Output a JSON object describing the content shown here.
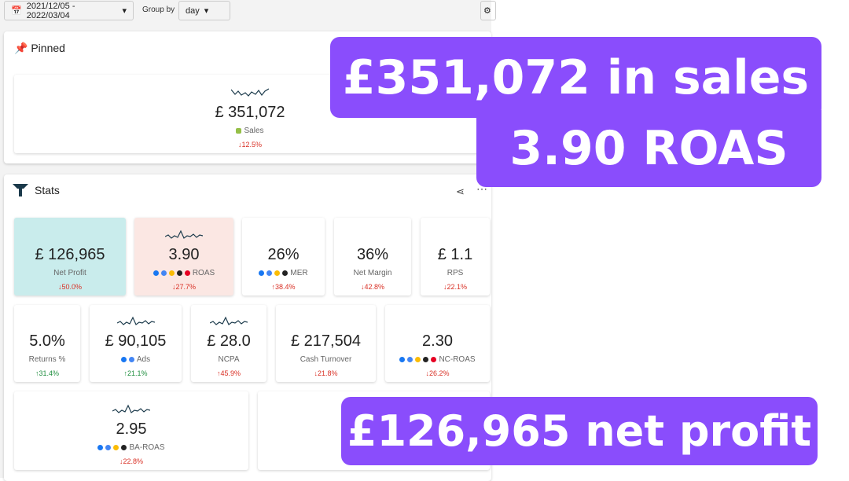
{
  "toolbar": {
    "date_range": "2021/12/05 - 2022/03/04",
    "group_by_label": "Group by",
    "group_by": "day"
  },
  "pinned": {
    "title": "Pinned",
    "card": {
      "value": "£ 351,072",
      "label": "Sales",
      "change": "↓12.5%",
      "change_color": "#d93025"
    }
  },
  "stats": {
    "title": "Stats",
    "cards": [
      {
        "value": "£ 126,965",
        "label": "Net Profit",
        "change": "↓50.0%",
        "change_color": "#d93025",
        "background": "#c9ecec"
      },
      {
        "value": "3.90",
        "label": "ROAS",
        "change": "↓27.7%",
        "change_color": "#d93025",
        "background": "#fbe7e3"
      },
      {
        "value": "26%",
        "label": "MER",
        "change": "↑38.4%",
        "change_color": "#d93025",
        "background": "#ffffff"
      },
      {
        "value": "36%",
        "label": "Net Margin",
        "change": "↓42.8%",
        "change_color": "#d93025",
        "background": "#ffffff"
      },
      {
        "value": "£ 1.1",
        "label": "RPS",
        "change": "↓22.1%",
        "change_color": "#d93025",
        "background": "#ffffff"
      },
      {
        "value": "5.0%",
        "label": "Returns %",
        "change": "↑31.4%",
        "change_color": "#1e8e3e",
        "background": "#ffffff"
      },
      {
        "value": "£ 90,105",
        "label": "Ads",
        "change": "↑21.1%",
        "change_color": "#1e8e3e",
        "background": "#ffffff"
      },
      {
        "value": "£ 28.0",
        "label": "NCPA",
        "change": "↑45.9%",
        "change_color": "#d93025",
        "background": "#ffffff"
      },
      {
        "value": "£ 217,504",
        "label": "Cash Turnover",
        "change": "↓21.8%",
        "change_color": "#d93025",
        "background": "#ffffff"
      },
      {
        "value": "2.30",
        "label": "NC-ROAS",
        "change": "↓26.2%",
        "change_color": "#d93025",
        "background": "#ffffff"
      },
      {
        "value": "2.95",
        "label": "BA-ROAS",
        "change": "↓22.8%",
        "change_color": "#d93025",
        "background": "#ffffff"
      }
    ]
  },
  "overlays": [
    "£351,072 in sales",
    "3.90 ROAS",
    "£126,965 net profit"
  ]
}
